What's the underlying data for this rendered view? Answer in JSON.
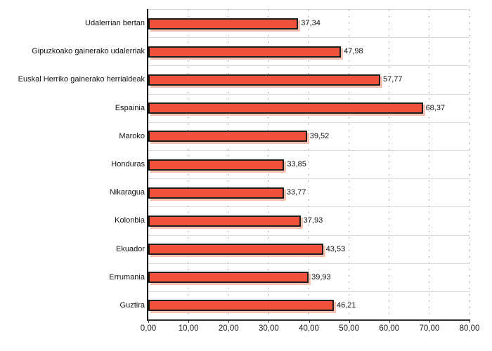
{
  "chart_data": {
    "type": "bar",
    "orientation": "horizontal",
    "title": "",
    "xlabel": "",
    "ylabel": "",
    "categories": [
      "Udalerrian bertan",
      "Gipuzkoako gainerako udalerriak",
      "Euskal Herriko gainerako herrialdeak",
      "Espainia",
      "Maroko",
      "Honduras",
      "Nikaragua",
      "Kolonbia",
      "Ekuador",
      "Errumania",
      "Guztira"
    ],
    "values": [
      37.34,
      47.98,
      57.77,
      68.37,
      39.52,
      33.85,
      33.77,
      37.93,
      43.53,
      39.93,
      46.21
    ],
    "value_labels": [
      "37,34",
      "47,98",
      "57,77",
      "68,37",
      "39,52",
      "33,85",
      "33,77",
      "37,93",
      "43,53",
      "39,93",
      "46,21"
    ],
    "xlim": [
      0,
      80
    ],
    "x_tick_values": [
      0,
      10,
      20,
      30,
      40,
      50,
      60,
      70,
      80
    ],
    "x_tick_labels": [
      "0,00",
      "10,00",
      "20,00",
      "30,00",
      "40,00",
      "50,00",
      "60,00",
      "70,00",
      "80,00"
    ],
    "grid": "vertical-dotted",
    "legend": "none",
    "colors": {
      "bar_fill": "#f0513c",
      "bar_border": "#1f1f1f",
      "bar_shadow": "#f8c2b2",
      "gridline": "#8c8c8c",
      "row_separator": "#d9d9d9",
      "category_axis_line": "#000000",
      "value_axis_line": "#2e2e2e",
      "text": "#111111",
      "background": "#ffffff"
    }
  }
}
